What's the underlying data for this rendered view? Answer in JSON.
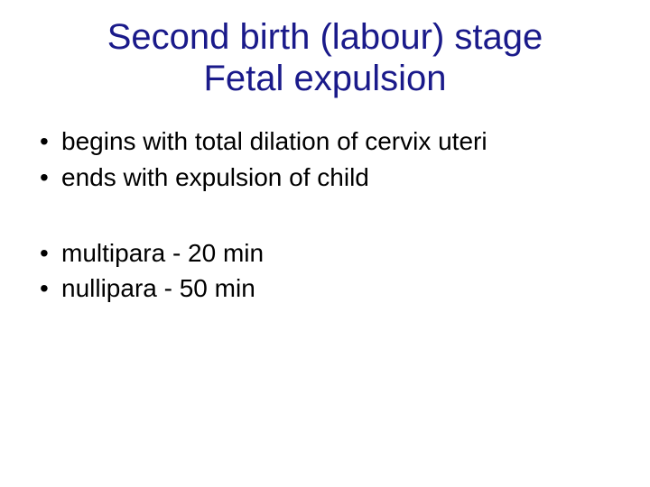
{
  "title": {
    "line1": "Second birth (labour) stage",
    "line2": "Fetal expulsion",
    "color": "#1a1a8a",
    "fontsize": 40
  },
  "body": {
    "color": "#000000",
    "fontsize": 28,
    "group1": [
      "begins with total dilation of cervix uteri",
      "ends with expulsion of child"
    ],
    "group2": [
      "multipara - 20 min",
      "nullipara - 50 min"
    ]
  },
  "background_color": "#ffffff"
}
